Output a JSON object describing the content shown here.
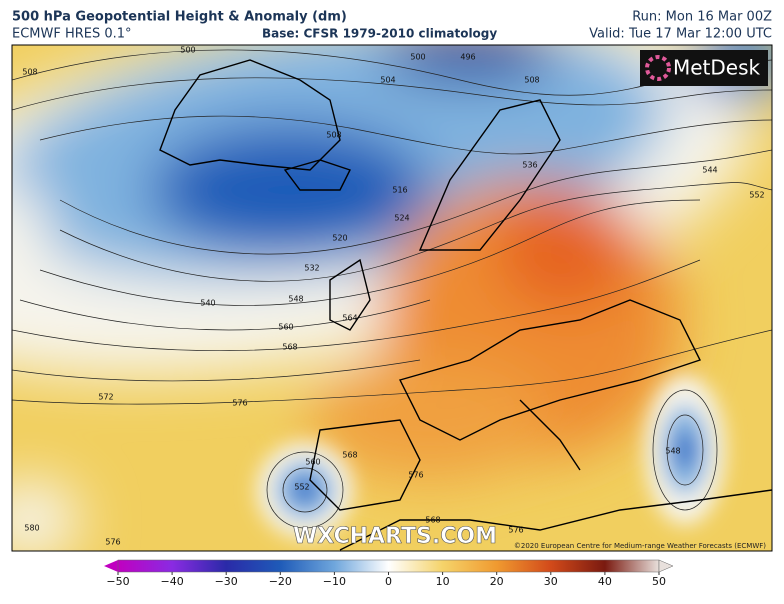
{
  "header": {
    "title": "500 hPa Geopotential Height & Anomaly (dm)",
    "model": "ECMWF HRES 0.1°",
    "base": "Base: CFSR 1979-2010 climatology",
    "run": "Run: Mon 16 Mar 00Z",
    "valid": "Valid: Tue 17 Mar 12:00 UTC"
  },
  "logo": "MetDesk",
  "watermark": "WXCHARTS.COM",
  "copyright": "©2020 European Centre for Medium-range Weather Forecasts (ECMWF)",
  "contour_labels": [
    "500",
    "500",
    "496",
    "508",
    "504",
    "508",
    "508",
    "516",
    "524",
    "520",
    "532",
    "540",
    "548",
    "560",
    "568",
    "564",
    "572",
    "576",
    "544",
    "552",
    "536",
    "548",
    "560",
    "552",
    "568",
    "576",
    "568",
    "576",
    "580",
    "576"
  ],
  "colorbar": {
    "ticks": [
      {
        "value": -50,
        "label": "−50"
      },
      {
        "value": -40,
        "label": "−40"
      },
      {
        "value": -30,
        "label": "−30"
      },
      {
        "value": -20,
        "label": "−20"
      },
      {
        "value": -10,
        "label": "−10"
      },
      0,
      10,
      20,
      30,
      40,
      50
    ]
  }
}
